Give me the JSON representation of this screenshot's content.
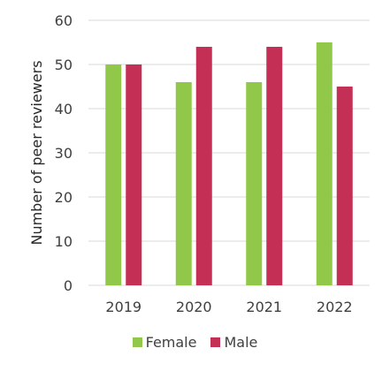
{
  "chart_data": {
    "type": "bar",
    "categories": [
      "2019",
      "2020",
      "2021",
      "2022"
    ],
    "series": [
      {
        "name": "Female",
        "color": "#92c84a",
        "values": [
          50,
          46,
          46,
          55
        ]
      },
      {
        "name": "Male",
        "color": "#c43055",
        "values": [
          50,
          54,
          54,
          45
        ]
      }
    ],
    "ylabel": "Number of peer reviewers",
    "ylim": [
      0,
      60
    ],
    "yticks": [
      "0",
      "10",
      "20",
      "30",
      "40",
      "50",
      "60"
    ],
    "grid": true,
    "legend_position": "bottom"
  }
}
